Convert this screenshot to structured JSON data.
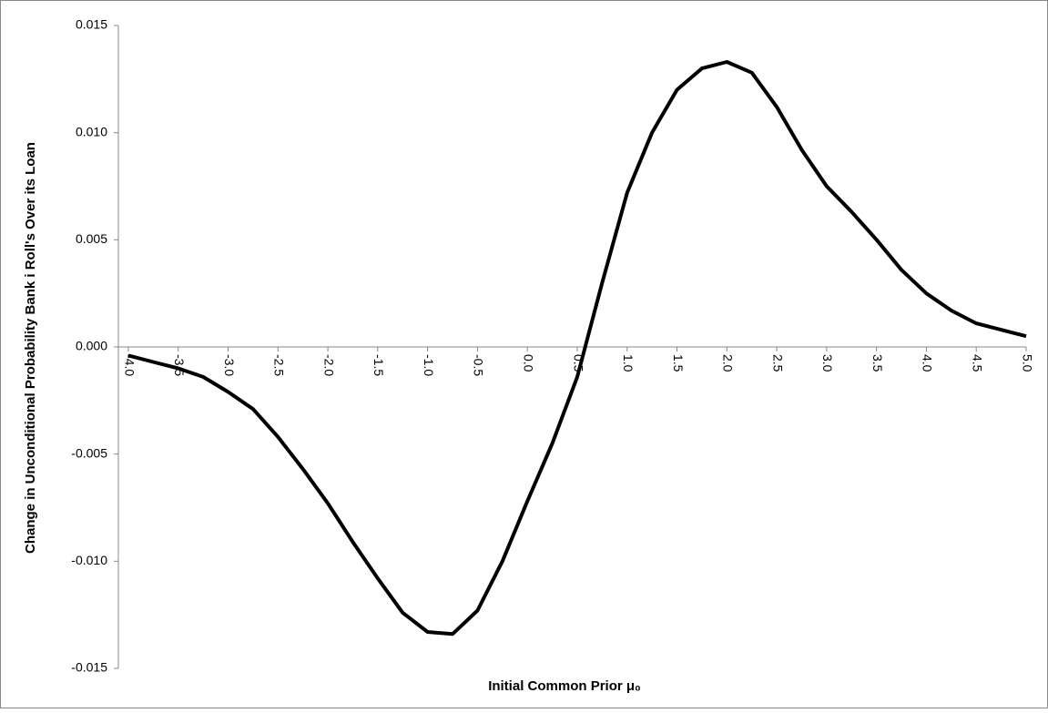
{
  "chart_data": {
    "type": "line",
    "y_label": "Change in Unconditional Probability Bank i Roll's Over its Loan",
    "x_label": "Initial Common Prior μ₀",
    "x": [
      -4.0,
      -3.75,
      -3.5,
      -3.25,
      -3.0,
      -2.75,
      -2.5,
      -2.25,
      -2.0,
      -1.75,
      -1.5,
      -1.25,
      -1.0,
      -0.75,
      -0.5,
      -0.25,
      0.0,
      0.25,
      0.5,
      0.75,
      1.0,
      1.25,
      1.5,
      1.75,
      2.0,
      2.25,
      2.5,
      2.75,
      3.0,
      3.25,
      3.5,
      3.75,
      4.0,
      4.25,
      4.5,
      4.75,
      5.0
    ],
    "series": [
      {
        "color": "#000000",
        "values": [
          -0.0004,
          -0.0007,
          -0.001,
          -0.0014,
          -0.0021,
          -0.0029,
          -0.0042,
          -0.0057,
          -0.0073,
          -0.0091,
          -0.0108,
          -0.0124,
          -0.0133,
          -0.0134,
          -0.0123,
          -0.01,
          -0.0072,
          -0.0045,
          -0.0014,
          0.003,
          0.0072,
          0.01,
          0.012,
          0.013,
          0.0133,
          0.0128,
          0.0112,
          0.0092,
          0.0075,
          0.0063,
          0.005,
          0.0036,
          0.0025,
          0.0017,
          0.0011,
          0.0008,
          0.0005
        ]
      }
    ],
    "xlim": [
      -4.1,
      5.0
    ],
    "xticks": [
      {
        "value": -4,
        "label": "-4.0"
      },
      {
        "value": -3.5,
        "label": "-3.5"
      },
      {
        "value": -3,
        "label": "-3.0"
      },
      {
        "value": -2.5,
        "label": "-2.5"
      },
      {
        "value": -2,
        "label": "-2.0"
      },
      {
        "value": -1.5,
        "label": "-1.5"
      },
      {
        "value": -1,
        "label": "-1.0"
      },
      {
        "value": -0.5,
        "label": "-0.5"
      },
      {
        "value": 0,
        "label": "0.0"
      },
      {
        "value": 0.5,
        "label": "0.5"
      },
      {
        "value": 1,
        "label": "1.0"
      },
      {
        "value": 1.5,
        "label": "1.5"
      },
      {
        "value": 2,
        "label": "2.0"
      },
      {
        "value": 2.5,
        "label": "2.5"
      },
      {
        "value": 3,
        "label": "3.0"
      },
      {
        "value": 3.5,
        "label": "3.5"
      },
      {
        "value": 4,
        "label": "4.0"
      },
      {
        "value": 4.5,
        "label": "4.5"
      },
      {
        "value": 5,
        "label": "5.0"
      }
    ],
    "ylim": [
      -0.015,
      0.015
    ],
    "yticks": [
      -0.015,
      {
        "value": -0.01,
        "label": "-0.010"
      },
      -0.005,
      {
        "value": 0,
        "label": "0.000"
      },
      0.005,
      {
        "value": 0.01,
        "label": "0.010"
      },
      0.015
    ]
  }
}
